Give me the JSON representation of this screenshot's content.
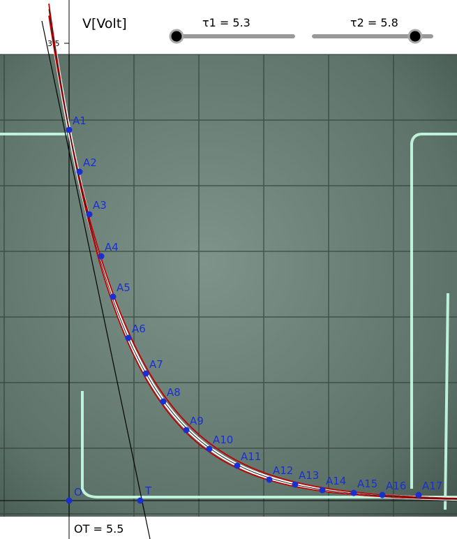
{
  "axis": {
    "y_label": "V[Volt]",
    "y_tick": "3.5"
  },
  "sliders": [
    {
      "label": "τ1 = 5.3"
    },
    {
      "label": "τ2 = 5.8"
    }
  ],
  "points": [
    "A1",
    "A2",
    "A3",
    "A4",
    "A5",
    "A6",
    "A7",
    "A8",
    "A9",
    "A10",
    "A11",
    "A12",
    "A13",
    "A14",
    "A15",
    "A16",
    "A17"
  ],
  "origin_label": "O",
  "tangent_point_label": "T",
  "result": "OT = 5.5"
}
